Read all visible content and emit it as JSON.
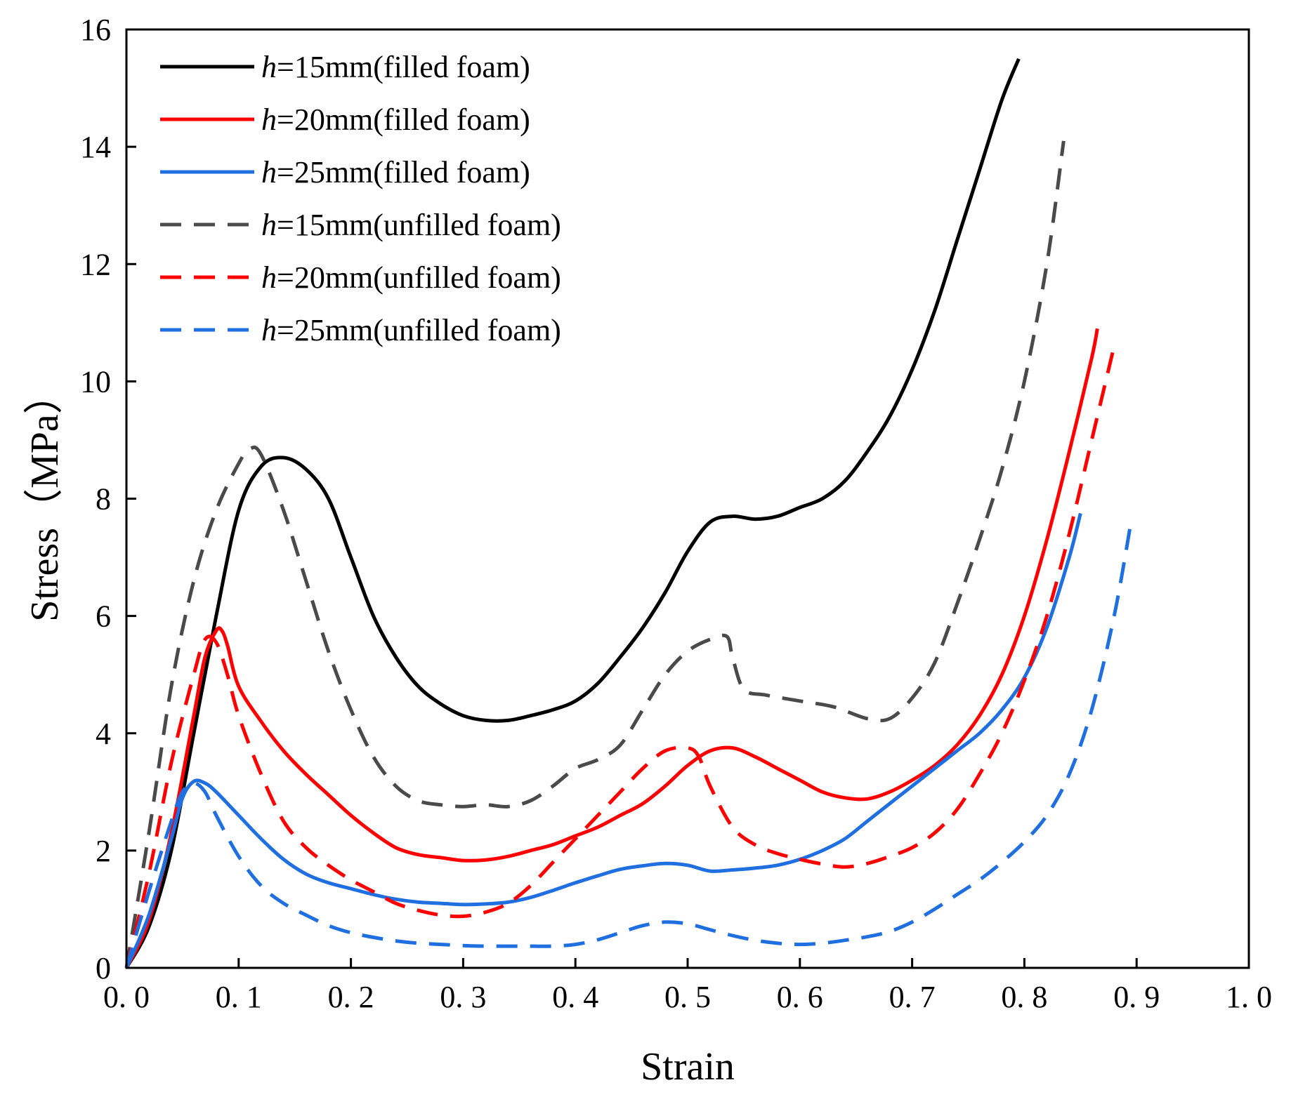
{
  "chart_data": {
    "type": "line",
    "title": "",
    "xlabel": "Strain",
    "ylabel": "Stress（MPa）",
    "xlim": [
      0.0,
      1.0
    ],
    "ylim": [
      0,
      16
    ],
    "x_ticks": [
      0.0,
      0.1,
      0.2,
      0.3,
      0.4,
      0.5,
      0.6,
      0.7,
      0.8,
      0.9,
      1.0
    ],
    "x_tick_labels": [
      "0. 0",
      "0. 1",
      "0. 2",
      "0. 3",
      "0. 4",
      "0. 5",
      "0. 6",
      "0. 7",
      "0. 8",
      "0. 9",
      "1. 0"
    ],
    "y_ticks": [
      0,
      2,
      4,
      6,
      8,
      10,
      12,
      14,
      16
    ],
    "y_tick_labels": [
      "0",
      "2",
      "4",
      "6",
      "8",
      "10",
      "12",
      "14",
      "16"
    ],
    "grid": false,
    "legend_position": "top-left",
    "series": [
      {
        "name": "h=15mm(filled foam)",
        "legend_italic": "h",
        "legend_rest": "=15mm(filled foam)",
        "color": "#000000",
        "dash": "solid",
        "points": [
          [
            0.0,
            0.0
          ],
          [
            0.02,
            0.7
          ],
          [
            0.04,
            2.0
          ],
          [
            0.06,
            4.0
          ],
          [
            0.08,
            6.0
          ],
          [
            0.1,
            7.8
          ],
          [
            0.12,
            8.55
          ],
          [
            0.14,
            8.7
          ],
          [
            0.16,
            8.5
          ],
          [
            0.18,
            8.0
          ],
          [
            0.2,
            7.0
          ],
          [
            0.22,
            6.0
          ],
          [
            0.24,
            5.3
          ],
          [
            0.26,
            4.8
          ],
          [
            0.28,
            4.5
          ],
          [
            0.3,
            4.3
          ],
          [
            0.32,
            4.22
          ],
          [
            0.34,
            4.22
          ],
          [
            0.36,
            4.3
          ],
          [
            0.38,
            4.4
          ],
          [
            0.4,
            4.55
          ],
          [
            0.42,
            4.85
          ],
          [
            0.44,
            5.3
          ],
          [
            0.46,
            5.8
          ],
          [
            0.48,
            6.4
          ],
          [
            0.5,
            7.1
          ],
          [
            0.52,
            7.6
          ],
          [
            0.54,
            7.7
          ],
          [
            0.56,
            7.65
          ],
          [
            0.58,
            7.7
          ],
          [
            0.6,
            7.85
          ],
          [
            0.62,
            8.0
          ],
          [
            0.64,
            8.3
          ],
          [
            0.66,
            8.8
          ],
          [
            0.68,
            9.4
          ],
          [
            0.7,
            10.2
          ],
          [
            0.72,
            11.2
          ],
          [
            0.74,
            12.4
          ],
          [
            0.76,
            13.6
          ],
          [
            0.78,
            14.8
          ],
          [
            0.795,
            15.5
          ]
        ]
      },
      {
        "name": "h=20mm(filled foam)",
        "legend_italic": "h",
        "legend_rest": "=20mm(filled foam)",
        "color": "#ff0000",
        "dash": "solid",
        "points": [
          [
            0.0,
            0.0
          ],
          [
            0.02,
            0.8
          ],
          [
            0.04,
            2.3
          ],
          [
            0.06,
            4.3
          ],
          [
            0.07,
            5.3
          ],
          [
            0.08,
            5.75
          ],
          [
            0.085,
            5.75
          ],
          [
            0.09,
            5.5
          ],
          [
            0.1,
            4.8
          ],
          [
            0.12,
            4.2
          ],
          [
            0.14,
            3.7
          ],
          [
            0.16,
            3.3
          ],
          [
            0.18,
            2.95
          ],
          [
            0.2,
            2.6
          ],
          [
            0.22,
            2.3
          ],
          [
            0.24,
            2.05
          ],
          [
            0.26,
            1.93
          ],
          [
            0.28,
            1.88
          ],
          [
            0.3,
            1.83
          ],
          [
            0.32,
            1.84
          ],
          [
            0.34,
            1.9
          ],
          [
            0.36,
            2.0
          ],
          [
            0.38,
            2.1
          ],
          [
            0.4,
            2.25
          ],
          [
            0.42,
            2.4
          ],
          [
            0.44,
            2.6
          ],
          [
            0.46,
            2.8
          ],
          [
            0.48,
            3.1
          ],
          [
            0.5,
            3.45
          ],
          [
            0.52,
            3.7
          ],
          [
            0.54,
            3.75
          ],
          [
            0.56,
            3.6
          ],
          [
            0.58,
            3.4
          ],
          [
            0.6,
            3.2
          ],
          [
            0.62,
            3.0
          ],
          [
            0.64,
            2.9
          ],
          [
            0.66,
            2.88
          ],
          [
            0.68,
            3.0
          ],
          [
            0.7,
            3.2
          ],
          [
            0.72,
            3.45
          ],
          [
            0.74,
            3.8
          ],
          [
            0.76,
            4.3
          ],
          [
            0.78,
            5.0
          ],
          [
            0.8,
            6.0
          ],
          [
            0.82,
            7.3
          ],
          [
            0.84,
            8.8
          ],
          [
            0.86,
            10.4
          ],
          [
            0.865,
            10.9
          ]
        ]
      },
      {
        "name": "h=25mm(filled foam)",
        "legend_italic": "h",
        "legend_rest": "=25mm(filled foam)",
        "color": "#1f6fe0",
        "dash": "solid",
        "points": [
          [
            0.0,
            0.0
          ],
          [
            0.02,
            0.9
          ],
          [
            0.04,
            2.2
          ],
          [
            0.05,
            2.9
          ],
          [
            0.06,
            3.18
          ],
          [
            0.07,
            3.15
          ],
          [
            0.08,
            3.0
          ],
          [
            0.1,
            2.6
          ],
          [
            0.12,
            2.2
          ],
          [
            0.14,
            1.85
          ],
          [
            0.16,
            1.6
          ],
          [
            0.18,
            1.45
          ],
          [
            0.2,
            1.35
          ],
          [
            0.22,
            1.25
          ],
          [
            0.24,
            1.17
          ],
          [
            0.26,
            1.12
          ],
          [
            0.28,
            1.1
          ],
          [
            0.3,
            1.08
          ],
          [
            0.32,
            1.09
          ],
          [
            0.34,
            1.12
          ],
          [
            0.36,
            1.2
          ],
          [
            0.38,
            1.32
          ],
          [
            0.4,
            1.45
          ],
          [
            0.42,
            1.57
          ],
          [
            0.44,
            1.68
          ],
          [
            0.46,
            1.74
          ],
          [
            0.48,
            1.78
          ],
          [
            0.5,
            1.75
          ],
          [
            0.52,
            1.65
          ],
          [
            0.54,
            1.67
          ],
          [
            0.56,
            1.7
          ],
          [
            0.58,
            1.75
          ],
          [
            0.6,
            1.85
          ],
          [
            0.62,
            2.0
          ],
          [
            0.64,
            2.2
          ],
          [
            0.66,
            2.5
          ],
          [
            0.68,
            2.8
          ],
          [
            0.7,
            3.1
          ],
          [
            0.72,
            3.4
          ],
          [
            0.74,
            3.7
          ],
          [
            0.76,
            4.0
          ],
          [
            0.78,
            4.4
          ],
          [
            0.8,
            4.95
          ],
          [
            0.82,
            5.8
          ],
          [
            0.84,
            7.0
          ],
          [
            0.85,
            7.75
          ]
        ]
      },
      {
        "name": "h=15mm(unfilled foam)",
        "legend_italic": "h",
        "legend_rest": "=15mm(unfilled foam)",
        "color": "#4a4a4a",
        "dash": "dashed",
        "points": [
          [
            0.0,
            0.0
          ],
          [
            0.02,
            2.3
          ],
          [
            0.04,
            4.8
          ],
          [
            0.06,
            6.6
          ],
          [
            0.08,
            7.8
          ],
          [
            0.1,
            8.6
          ],
          [
            0.11,
            8.85
          ],
          [
            0.12,
            8.75
          ],
          [
            0.14,
            7.8
          ],
          [
            0.16,
            6.6
          ],
          [
            0.18,
            5.4
          ],
          [
            0.2,
            4.4
          ],
          [
            0.22,
            3.6
          ],
          [
            0.24,
            3.1
          ],
          [
            0.26,
            2.85
          ],
          [
            0.28,
            2.78
          ],
          [
            0.3,
            2.75
          ],
          [
            0.32,
            2.78
          ],
          [
            0.34,
            2.75
          ],
          [
            0.36,
            2.85
          ],
          [
            0.38,
            3.1
          ],
          [
            0.4,
            3.4
          ],
          [
            0.42,
            3.55
          ],
          [
            0.44,
            3.8
          ],
          [
            0.46,
            4.4
          ],
          [
            0.48,
            5.0
          ],
          [
            0.5,
            5.4
          ],
          [
            0.52,
            5.6
          ],
          [
            0.535,
            5.65
          ],
          [
            0.54,
            5.3
          ],
          [
            0.55,
            4.75
          ],
          [
            0.57,
            4.65
          ],
          [
            0.6,
            4.55
          ],
          [
            0.63,
            4.45
          ],
          [
            0.66,
            4.25
          ],
          [
            0.68,
            4.25
          ],
          [
            0.7,
            4.6
          ],
          [
            0.72,
            5.2
          ],
          [
            0.74,
            6.2
          ],
          [
            0.76,
            7.3
          ],
          [
            0.78,
            8.5
          ],
          [
            0.8,
            10.0
          ],
          [
            0.82,
            12.0
          ],
          [
            0.835,
            14.1
          ]
        ]
      },
      {
        "name": "h=20mm(unfilled foam)",
        "legend_italic": "h",
        "legend_rest": "=20mm(unfilled foam)",
        "color": "#ff0000",
        "dash": "dashed",
        "points": [
          [
            0.0,
            0.0
          ],
          [
            0.02,
            1.6
          ],
          [
            0.04,
            3.5
          ],
          [
            0.06,
            5.0
          ],
          [
            0.07,
            5.6
          ],
          [
            0.08,
            5.55
          ],
          [
            0.09,
            5.0
          ],
          [
            0.1,
            4.3
          ],
          [
            0.12,
            3.3
          ],
          [
            0.14,
            2.5
          ],
          [
            0.16,
            2.05
          ],
          [
            0.18,
            1.75
          ],
          [
            0.2,
            1.5
          ],
          [
            0.22,
            1.3
          ],
          [
            0.24,
            1.1
          ],
          [
            0.26,
            0.98
          ],
          [
            0.28,
            0.9
          ],
          [
            0.3,
            0.88
          ],
          [
            0.32,
            0.95
          ],
          [
            0.34,
            1.1
          ],
          [
            0.36,
            1.4
          ],
          [
            0.38,
            1.8
          ],
          [
            0.4,
            2.2
          ],
          [
            0.42,
            2.6
          ],
          [
            0.44,
            3.0
          ],
          [
            0.46,
            3.4
          ],
          [
            0.48,
            3.7
          ],
          [
            0.5,
            3.75
          ],
          [
            0.51,
            3.6
          ],
          [
            0.52,
            3.1
          ],
          [
            0.54,
            2.4
          ],
          [
            0.56,
            2.1
          ],
          [
            0.58,
            1.95
          ],
          [
            0.6,
            1.85
          ],
          [
            0.62,
            1.77
          ],
          [
            0.64,
            1.72
          ],
          [
            0.66,
            1.78
          ],
          [
            0.68,
            1.9
          ],
          [
            0.7,
            2.05
          ],
          [
            0.72,
            2.3
          ],
          [
            0.74,
            2.7
          ],
          [
            0.76,
            3.3
          ],
          [
            0.78,
            4.0
          ],
          [
            0.8,
            4.9
          ],
          [
            0.82,
            6.0
          ],
          [
            0.84,
            7.4
          ],
          [
            0.86,
            9.0
          ],
          [
            0.88,
            10.6
          ]
        ]
      },
      {
        "name": "h=25mm(unfilled foam)",
        "legend_italic": "h",
        "legend_rest": "=25mm(unfilled foam)",
        "color": "#1f6fe0",
        "dash": "dashed",
        "points": [
          [
            0.0,
            0.0
          ],
          [
            0.02,
            1.3
          ],
          [
            0.04,
            2.5
          ],
          [
            0.05,
            3.0
          ],
          [
            0.06,
            3.15
          ],
          [
            0.07,
            3.0
          ],
          [
            0.08,
            2.6
          ],
          [
            0.1,
            1.9
          ],
          [
            0.12,
            1.4
          ],
          [
            0.14,
            1.1
          ],
          [
            0.16,
            0.9
          ],
          [
            0.18,
            0.72
          ],
          [
            0.2,
            0.6
          ],
          [
            0.22,
            0.52
          ],
          [
            0.24,
            0.46
          ],
          [
            0.26,
            0.42
          ],
          [
            0.28,
            0.4
          ],
          [
            0.3,
            0.38
          ],
          [
            0.32,
            0.37
          ],
          [
            0.34,
            0.37
          ],
          [
            0.36,
            0.37
          ],
          [
            0.38,
            0.37
          ],
          [
            0.4,
            0.4
          ],
          [
            0.42,
            0.48
          ],
          [
            0.44,
            0.6
          ],
          [
            0.46,
            0.72
          ],
          [
            0.48,
            0.78
          ],
          [
            0.5,
            0.75
          ],
          [
            0.52,
            0.65
          ],
          [
            0.54,
            0.55
          ],
          [
            0.56,
            0.47
          ],
          [
            0.58,
            0.42
          ],
          [
            0.6,
            0.4
          ],
          [
            0.62,
            0.42
          ],
          [
            0.64,
            0.47
          ],
          [
            0.66,
            0.53
          ],
          [
            0.68,
            0.62
          ],
          [
            0.7,
            0.78
          ],
          [
            0.72,
            1.0
          ],
          [
            0.74,
            1.25
          ],
          [
            0.76,
            1.5
          ],
          [
            0.78,
            1.8
          ],
          [
            0.8,
            2.15
          ],
          [
            0.82,
            2.6
          ],
          [
            0.84,
            3.3
          ],
          [
            0.86,
            4.4
          ],
          [
            0.88,
            6.0
          ],
          [
            0.895,
            7.6
          ]
        ]
      }
    ]
  }
}
